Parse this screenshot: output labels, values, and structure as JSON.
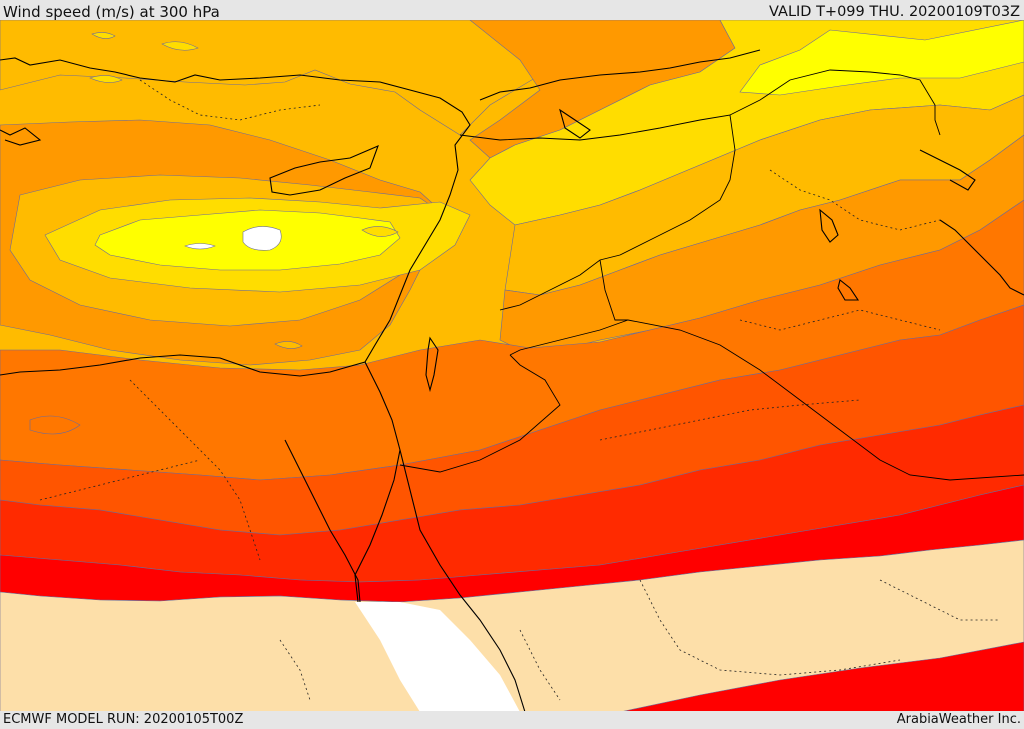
{
  "header": {
    "title": "Wind speed (m/s) at 300 hPa",
    "valid_time": "VALID T+099 THU. 20200109T03Z"
  },
  "footer": {
    "model_run": "ECMWF MODEL RUN: 20200105T00Z",
    "credit": "ArabiaWeather Inc."
  },
  "map": {
    "parameter": "wind speed",
    "level": "300 hPa",
    "region": "Eastern Mediterranean and Middle East",
    "jet_core_location": "eastern Mediterranean south of Turkey",
    "color_scale": [
      "#fddfa9",
      "#ff0000",
      "#ff2a00",
      "#ff5500",
      "#ff7700",
      "#ff9900",
      "#ffbb00",
      "#ffdd00",
      "#ffff00",
      "#ffffff"
    ]
  }
}
